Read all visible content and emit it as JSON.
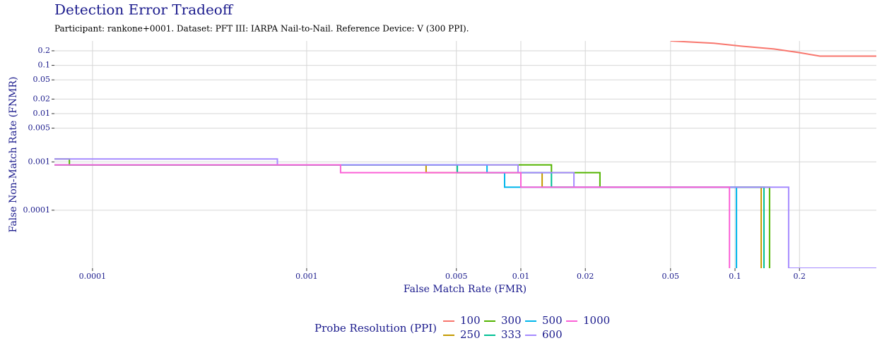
{
  "chart_data": {
    "type": "line",
    "title": "Detection Error Tradeoff",
    "subtitle": "Participant: rankone+0001. Dataset: PFT III: IARPA Nail-to-Nail. Reference Device: V (300 PPI).",
    "x_label": "False Match Rate (FMR)",
    "y_label": "False Non-Match Rate (FNMR)",
    "legend_title": "Probe Resolution (PPI)",
    "x_log": true,
    "y_log": true,
    "grid": true,
    "legend": "bottom",
    "xlim": [
      6.64e-05,
      0.457
    ],
    "ylim": [
      6.3e-06,
      0.32
    ],
    "xticks": [
      0.0001,
      0.001,
      0.005,
      0.01,
      0.02,
      0.05,
      0.1,
      0.2
    ],
    "yticks": [
      0.0001,
      0.001,
      0.005,
      0.01,
      0.02,
      0.05,
      0.1,
      0.2
    ],
    "series": [
      {
        "name": "100",
        "color": "#F8766D",
        "x": [
          0.05,
          0.0796,
          0.108,
          0.152,
          0.198,
          0.249,
          0.457
        ],
        "values": [
          0.32,
          0.286,
          0.249,
          0.218,
          0.184,
          0.155,
          0.155
        ]
      },
      {
        "name": "250",
        "color": "#C49A00",
        "x": [
          6.64e-05,
          0.00361,
          0.00361,
          0.01257,
          0.01257,
          0.1325,
          0.1325
        ],
        "values": [
          0.00087,
          0.00087,
          0.0006,
          0.0006,
          0.0003,
          0.0003,
          6.3e-06
        ]
      },
      {
        "name": "300",
        "color": "#53B400",
        "x": [
          6.64e-05,
          7.8e-05,
          7.8e-05,
          0.0139,
          0.0139,
          0.0234,
          0.0234,
          0.145,
          0.145
        ],
        "values": [
          0.00115,
          0.00115,
          0.00087,
          0.00087,
          0.0006,
          0.0006,
          0.0003,
          0.0003,
          6.3e-06
        ]
      },
      {
        "name": "333",
        "color": "#00C094",
        "x": [
          6.64e-05,
          0.00505,
          0.00505,
          0.0139,
          0.0139,
          0.1365,
          0.1365
        ],
        "values": [
          0.00087,
          0.00087,
          0.0006,
          0.0006,
          0.0003,
          0.0003,
          6.3e-06
        ]
      },
      {
        "name": "500",
        "color": "#00B6EB",
        "x": [
          6.64e-05,
          0.00695,
          0.00695,
          0.0084,
          0.0084,
          0.1016,
          0.1016
        ],
        "values": [
          0.00087,
          0.00087,
          0.0006,
          0.0006,
          0.0003,
          0.0003,
          6.3e-06
        ]
      },
      {
        "name": "600",
        "color": "#A58AFF",
        "x": [
          6.64e-05,
          0.00073,
          0.00073,
          0.0097,
          0.0097,
          0.0177,
          0.0177,
          0.178,
          0.178,
          0.457
        ],
        "values": [
          0.00115,
          0.00115,
          0.00087,
          0.00087,
          0.0006,
          0.0006,
          0.0003,
          0.0003,
          6.3e-06,
          6.3e-06
        ]
      },
      {
        "name": "1000",
        "color": "#FB61D7",
        "x": [
          6.64e-05,
          0.00144,
          0.00144,
          0.01,
          0.01,
          0.0942,
          0.0942
        ],
        "values": [
          0.00087,
          0.00087,
          0.0006,
          0.0006,
          0.0003,
          0.0003,
          6.3e-06
        ]
      }
    ]
  }
}
